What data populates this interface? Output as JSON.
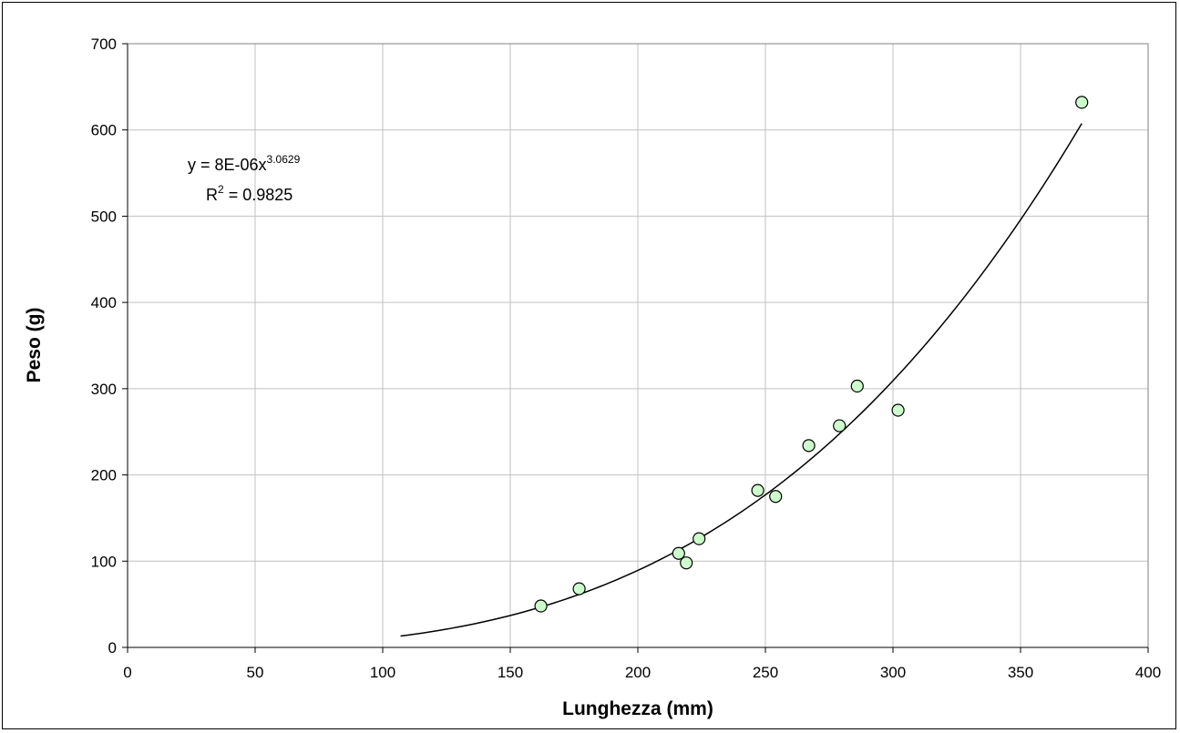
{
  "chart_data": {
    "type": "scatter",
    "xlabel": "Lunghezza (mm)",
    "ylabel": "Peso (g)",
    "xlim": [
      0,
      400
    ],
    "ylim": [
      0,
      700
    ],
    "x_ticks": [
      0,
      50,
      100,
      150,
      200,
      250,
      300,
      350,
      400
    ],
    "y_ticks": [
      0,
      100,
      200,
      300,
      400,
      500,
      600,
      700
    ],
    "grid": true,
    "legend": "none",
    "marker_fill": "#ccffcc",
    "marker_edge": "#000000",
    "series": [
      {
        "x": [
          162,
          177,
          216,
          219,
          224,
          247,
          254,
          267,
          279,
          286,
          302,
          374
        ],
        "y": [
          48,
          68,
          109,
          98,
          126,
          182,
          175,
          234,
          257,
          303,
          275,
          632
        ]
      }
    ],
    "trendline": {
      "type": "power",
      "coefficient": 8e-06,
      "exponent": 3.0629,
      "x_range": [
        107,
        374
      ]
    },
    "annotations": {
      "equation_main": "y = 8E-06x",
      "equation_exp": "3.0629",
      "r2_prefix": "R",
      "r2_exp": "2",
      "r2_value": " = 0.9825"
    }
  }
}
